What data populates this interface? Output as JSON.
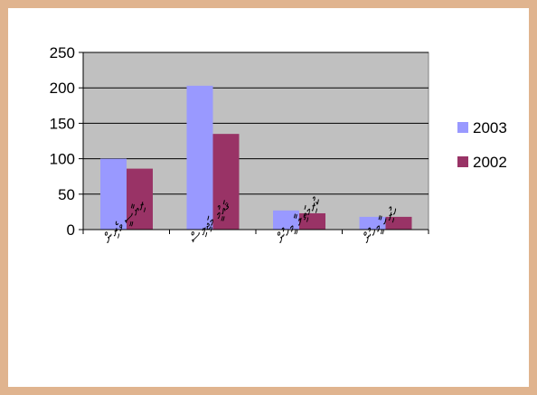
{
  "chart_data": {
    "type": "bar",
    "categories": [
      "ރިޔާސީ ވެރިން",
      "ޤައުމީ މަޖިލިސް",
      "ކުރިމަތިލާ މީހުން",
      "ހުރިހާ މީހުން"
    ],
    "series": [
      {
        "name": "2003",
        "values": [
          100,
          203,
          27,
          18
        ],
        "color": "#9999ff"
      },
      {
        "name": "2002",
        "values": [
          86,
          135,
          23,
          18
        ],
        "color": "#993366"
      }
    ],
    "ylim": [
      0,
      250
    ],
    "yticks": [
      0,
      50,
      100,
      150,
      200,
      250
    ],
    "grid": true,
    "plot_background": "#c0c0c0",
    "legend_position": "right",
    "title": "",
    "xlabel": "",
    "ylabel": ""
  }
}
